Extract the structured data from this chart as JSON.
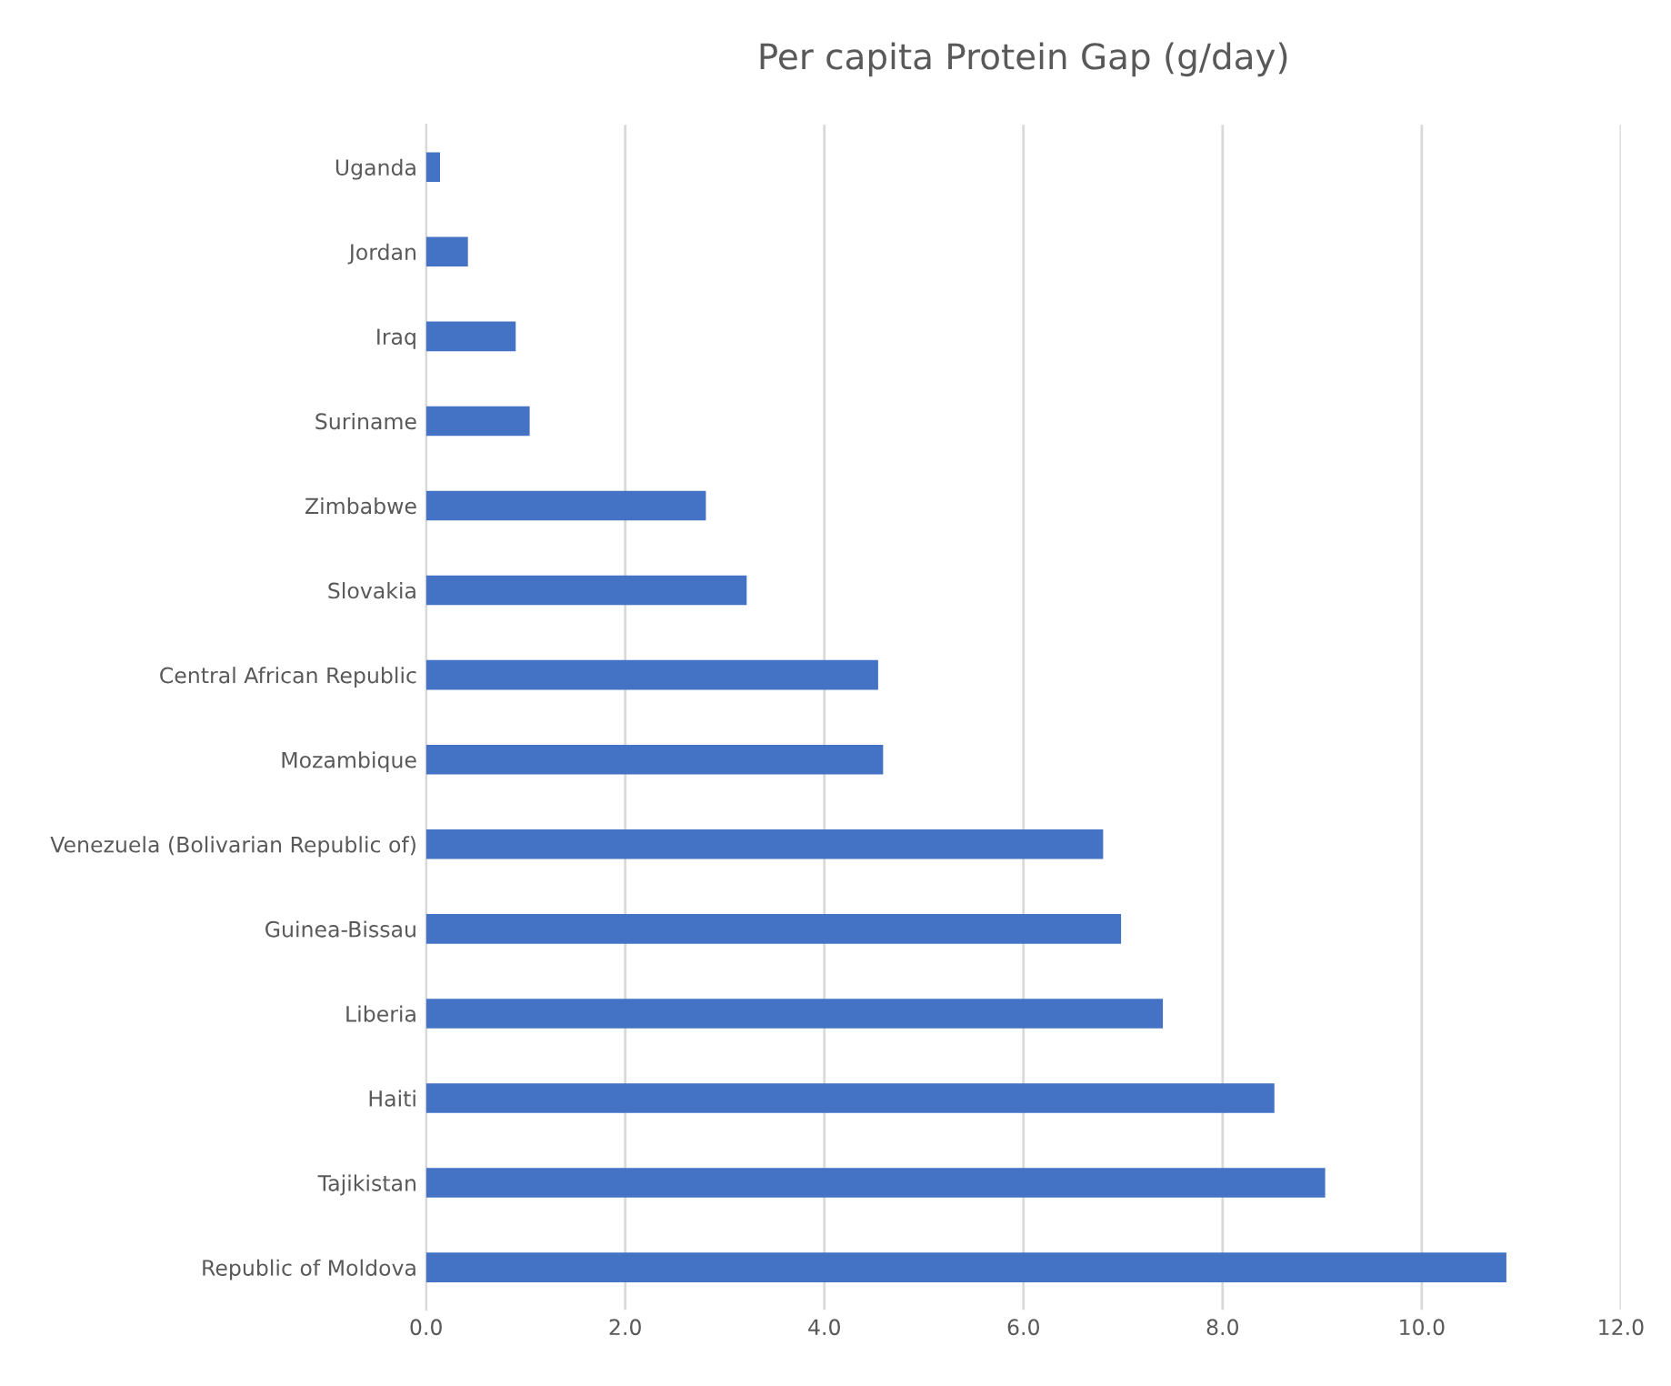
{
  "chart_data": {
    "type": "bar",
    "orientation": "horizontal",
    "title": "Per capita Protein Gap (g/day)",
    "categories": [
      "Uganda",
      "Jordan",
      "Iraq",
      "Suriname",
      "Zimbabwe",
      "Slovakia",
      "Central African Republic",
      "Mozambique",
      "Venezuela (Bolivarian Republic of)",
      "Guinea-Bissau",
      "Liberia",
      "Haiti",
      "Tajikistan",
      "Republic of Moldova"
    ],
    "values": [
      0.14,
      0.42,
      0.9,
      1.04,
      2.81,
      3.22,
      4.54,
      4.59,
      6.8,
      6.98,
      7.4,
      8.52,
      9.03,
      10.85
    ],
    "color": "#4472c4",
    "xlim": [
      0,
      12
    ],
    "xticks": [
      {
        "value": 0,
        "label": "0.0"
      },
      {
        "value": 2,
        "label": "2.0"
      },
      {
        "value": 4,
        "label": "4.0"
      },
      {
        "value": 6,
        "label": "6.0"
      },
      {
        "value": 8,
        "label": "8.0"
      },
      {
        "value": 10,
        "label": "10.0"
      },
      {
        "value": 12,
        "label": "12.0"
      }
    ],
    "grid": "x"
  }
}
